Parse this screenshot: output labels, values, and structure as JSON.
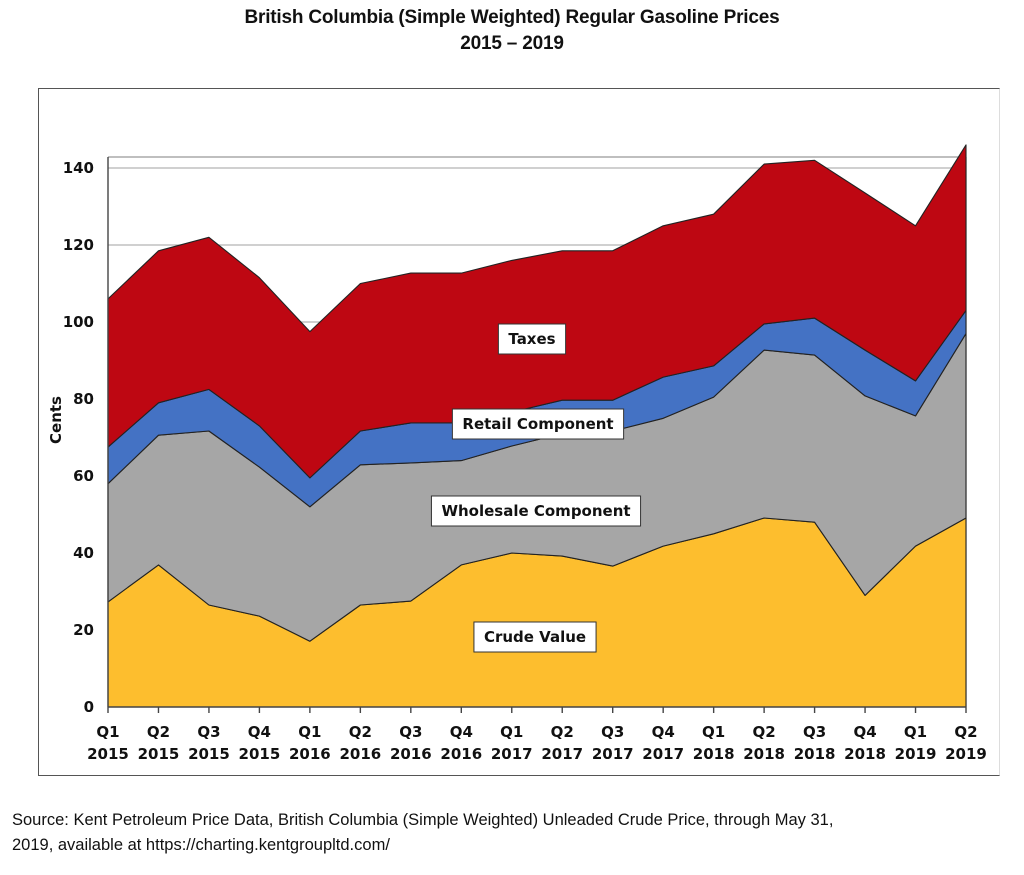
{
  "chart_data": {
    "type": "area",
    "stacked": true,
    "title": "British Columbia (Simple Weighted) Regular Gasoline Prices",
    "subtitle": "2015 – 2019",
    "xlabel": "",
    "ylabel": "Cents",
    "ylim": [
      0,
      143
    ],
    "yticks": [
      0,
      20,
      40,
      60,
      80,
      100,
      120,
      140
    ],
    "grid": true,
    "legend": "none (inline area labels)",
    "categories": [
      [
        "Q1",
        "2015"
      ],
      [
        "Q2",
        "2015"
      ],
      [
        "Q3",
        "2015"
      ],
      [
        "Q4",
        "2015"
      ],
      [
        "Q1",
        "2016"
      ],
      [
        "Q2",
        "2016"
      ],
      [
        "Q3",
        "2016"
      ],
      [
        "Q4",
        "2016"
      ],
      [
        "Q1",
        "2017"
      ],
      [
        "Q2",
        "2017"
      ],
      [
        "Q3",
        "2017"
      ],
      [
        "Q4",
        "2017"
      ],
      [
        "Q1",
        "2018"
      ],
      [
        "Q2",
        "2018"
      ],
      [
        "Q3",
        "2018"
      ],
      [
        "Q4",
        "2018"
      ],
      [
        "Q1",
        "2019"
      ],
      [
        "Q2",
        "2019"
      ]
    ],
    "series": [
      {
        "name": "Crude Value",
        "color": "#FDBE2E",
        "values": [
          27.3,
          36.9,
          26.5,
          23.6,
          17.1,
          26.5,
          27.5,
          36.9,
          40.0,
          39.2,
          36.6,
          41.8,
          45.0,
          49.1,
          48.0,
          29.0,
          41.8,
          49.1
        ]
      },
      {
        "name": "Wholesale Component",
        "color": "#A6A6A6",
        "values": [
          30.7,
          33.7,
          45.2,
          38.7,
          34.9,
          36.4,
          35.9,
          27.1,
          27.8,
          31.8,
          35.1,
          33.2,
          35.5,
          43.6,
          43.4,
          51.8,
          33.8,
          47.9
        ]
      },
      {
        "name": "Retail Component",
        "color": "#4472C4",
        "values": [
          9.5,
          8.4,
          10.8,
          10.7,
          7.5,
          8.8,
          10.4,
          9.8,
          8.8,
          8.7,
          8.0,
          10.7,
          8.1,
          6.8,
          9.6,
          11.9,
          9.1,
          6.0
        ]
      },
      {
        "name": "Taxes",
        "color": "#BE0712",
        "values": [
          38.5,
          39.5,
          39.5,
          38.5,
          38.0,
          38.3,
          38.9,
          38.9,
          39.4,
          38.8,
          38.8,
          39.3,
          39.4,
          41.5,
          41.0,
          40.8,
          40.3,
          43.0
        ]
      }
    ],
    "area_labels": [
      "Taxes",
      "Retail Component",
      "Wholesale Component",
      "Crude Value"
    ]
  },
  "source_line1": "Source: Kent Petroleum Price Data, British Columbia (Simple Weighted) Unleaded Crude Price, through May 31,",
  "source_line2": "2019, available at https://charting.kentgroupltd.com/"
}
